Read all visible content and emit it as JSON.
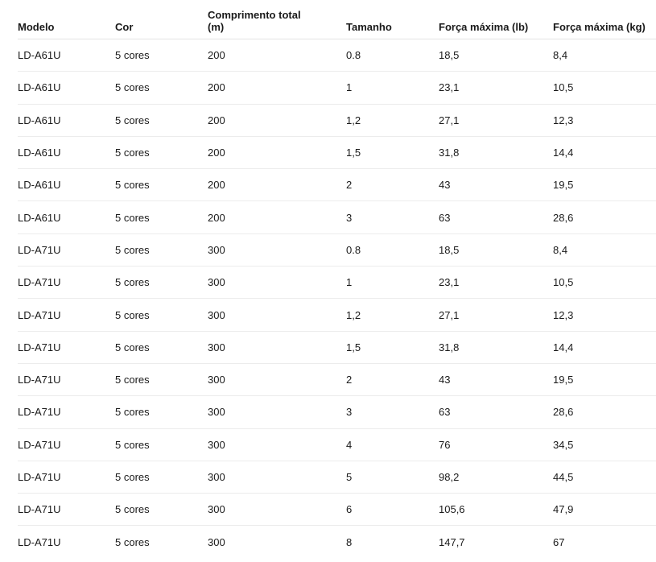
{
  "table": {
    "columns": [
      "Modelo",
      "Cor",
      "Comprimento total (m)",
      "Tamanho",
      "Força máxima (lb)",
      "Força máxima (kg)"
    ],
    "rows": [
      [
        "LD-A61U",
        "5 cores",
        "200",
        "0.8",
        "18,5",
        "8,4"
      ],
      [
        "LD-A61U",
        "5 cores",
        "200",
        "1",
        "23,1",
        "10,5"
      ],
      [
        "LD-A61U",
        "5 cores",
        "200",
        "1,2",
        "27,1",
        "12,3"
      ],
      [
        "LD-A61U",
        "5 cores",
        "200",
        "1,5",
        "31,8",
        "14,4"
      ],
      [
        "LD-A61U",
        "5 cores",
        "200",
        "2",
        "43",
        "19,5"
      ],
      [
        "LD-A61U",
        "5 cores",
        "200",
        "3",
        "63",
        "28,6"
      ],
      [
        "LD-A71U",
        "5 cores",
        "300",
        "0.8",
        "18,5",
        "8,4"
      ],
      [
        "LD-A71U",
        "5 cores",
        "300",
        "1",
        "23,1",
        "10,5"
      ],
      [
        "LD-A71U",
        "5 cores",
        "300",
        "1,2",
        "27,1",
        "12,3"
      ],
      [
        "LD-A71U",
        "5 cores",
        "300",
        "1,5",
        "31,8",
        "14,4"
      ],
      [
        "LD-A71U",
        "5 cores",
        "300",
        "2",
        "43",
        "19,5"
      ],
      [
        "LD-A71U",
        "5 cores",
        "300",
        "3",
        "63",
        "28,6"
      ],
      [
        "LD-A71U",
        "5 cores",
        "300",
        "4",
        "76",
        "34,5"
      ],
      [
        "LD-A71U",
        "5 cores",
        "300",
        "5",
        "98,2",
        "44,5"
      ],
      [
        "LD-A71U",
        "5 cores",
        "300",
        "6",
        "105,6",
        "47,9"
      ],
      [
        "LD-A71U",
        "5 cores",
        "300",
        "8",
        "147,7",
        "67"
      ]
    ]
  }
}
